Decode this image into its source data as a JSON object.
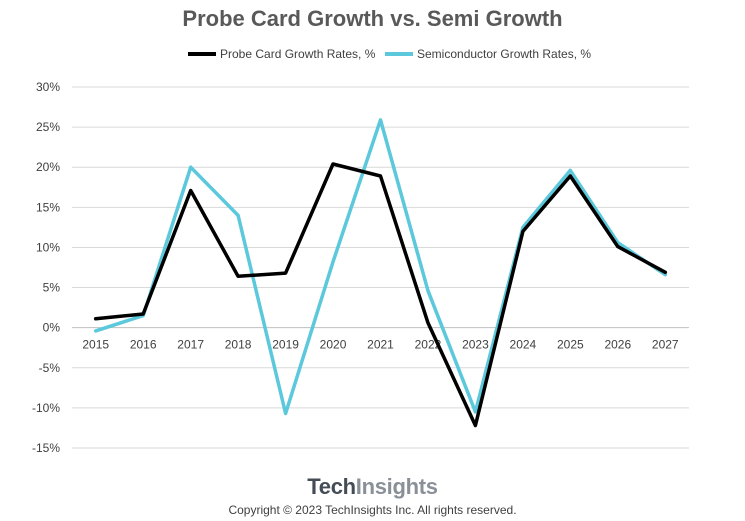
{
  "chart_data": {
    "type": "line",
    "title": "Probe Card Growth vs. Semi Growth",
    "categories": [
      "2015",
      "2016",
      "2017",
      "2018",
      "2019",
      "2020",
      "2021",
      "2022",
      "2023",
      "2024",
      "2025",
      "2026",
      "2027"
    ],
    "y_ticks": [
      "30%",
      "25%",
      "20%",
      "15%",
      "10%",
      "5%",
      "0%",
      "-5%",
      "-10%",
      "-15%"
    ],
    "ylim": [
      -15,
      30
    ],
    "y_unit": "%",
    "grid": true,
    "legend_position": "top",
    "series": [
      {
        "name": "Probe Card Growth Rates, %",
        "color": "#000000",
        "values": [
          1.1,
          1.7,
          17.1,
          6.4,
          6.8,
          20.4,
          18.9,
          0.6,
          -12.2,
          12.0,
          18.9,
          10.1,
          6.9
        ]
      },
      {
        "name": "Semiconductor Growth Rates, %",
        "color": "#5bc8dc",
        "values": [
          -0.4,
          1.5,
          20.0,
          14.0,
          -10.7,
          8.2,
          25.9,
          4.6,
          -10.5,
          12.5,
          19.6,
          10.6,
          6.6
        ]
      }
    ]
  },
  "branding": {
    "logo_part1": "Tech",
    "logo_part2": "Insights",
    "copyright": "Copyright © 2023 TechInsights Inc.  All rights reserved."
  }
}
